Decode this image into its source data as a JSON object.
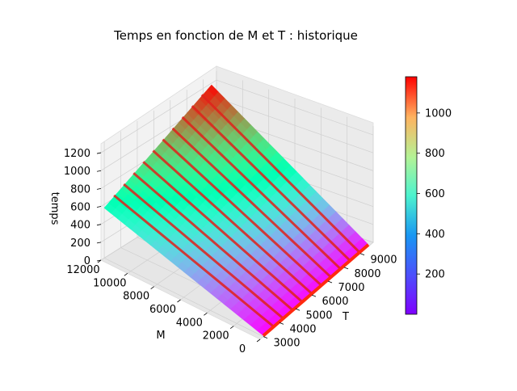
{
  "chart_data": {
    "type": "surface",
    "title": "Temps en fonction de M et T : historique",
    "xlabel": "M",
    "ylabel": "T",
    "zlabel": "temps",
    "x_ticks": [
      "0",
      "2000",
      "4000",
      "6000",
      "8000",
      "10000",
      "12000"
    ],
    "y_ticks": [
      "3000",
      "4000",
      "5000",
      "6000",
      "7000",
      "8000",
      "9000"
    ],
    "z_ticks": [
      "0",
      "200",
      "400",
      "600",
      "800",
      "1000",
      "1200"
    ],
    "xlim": [
      0,
      12000
    ],
    "ylim": [
      2800,
      9800
    ],
    "zlim": [
      0,
      1300
    ],
    "grid": true,
    "colormap": "rainbow",
    "colorbar": {
      "ticks": [
        "200",
        "400",
        "600",
        "800",
        "1000"
      ],
      "range": [
        0,
        1180
      ]
    },
    "surface_samples": [
      {
        "M": 0,
        "T": 3000,
        "temps": 10
      },
      {
        "M": 12000,
        "T": 3000,
        "temps": 560
      },
      {
        "M": 0,
        "T": 9500,
        "temps": 20
      },
      {
        "M": 12000,
        "T": 9500,
        "temps": 1180
      }
    ],
    "ridge_count": 10
  }
}
